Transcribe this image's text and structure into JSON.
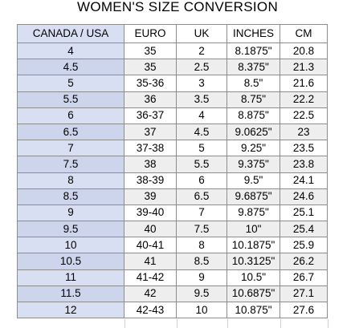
{
  "title": "WOMEN'S SIZE CONVERSION",
  "colors": {
    "header_accent": "#d9dff2",
    "accent_alt": "#cdd5ec",
    "alt_row": "#eeeeee",
    "grid_line": "#8c8c8c"
  },
  "columns": [
    "CANADA / USA",
    "EURO",
    "UK",
    "INCHES",
    "CM"
  ],
  "rows": [
    [
      "4",
      "35",
      "2",
      "8.1875\"",
      "20.8"
    ],
    [
      "4.5",
      "35",
      "2.5",
      "8.375\"",
      "21.3"
    ],
    [
      "5",
      "35-36",
      "3",
      "8.5\"",
      "21.6"
    ],
    [
      "5.5",
      "36",
      "3.5",
      "8.75\"",
      "22.2"
    ],
    [
      "6",
      "36-37",
      "4",
      "8.875\"",
      "22.5"
    ],
    [
      "6.5",
      "37",
      "4.5",
      "9.0625\"",
      "23"
    ],
    [
      "7",
      "37-38",
      "5",
      "9.25\"",
      "23.5"
    ],
    [
      "7.5",
      "38",
      "5.5",
      "9.375\"",
      "23.8"
    ],
    [
      "8",
      "38-39",
      "6",
      "9.5\"",
      "24.1"
    ],
    [
      "8.5",
      "39",
      "6.5",
      "9.6875\"",
      "24.6"
    ],
    [
      "9",
      "39-40",
      "7",
      "9.875\"",
      "25.1"
    ],
    [
      "9.5",
      "40",
      "7.5",
      "10\"",
      "25.4"
    ],
    [
      "10",
      "40-41",
      "8",
      "10.1875\"",
      "25.9"
    ],
    [
      "10.5",
      "41",
      "8.5",
      "10.3125\"",
      "26.2"
    ],
    [
      "11",
      "41-42",
      "9",
      "10.5\"",
      "26.7"
    ],
    [
      "11.5",
      "42",
      "9.5",
      "10.6875\"",
      "27.1"
    ],
    [
      "12",
      "42-43",
      "10",
      "10.875\"",
      "27.6"
    ]
  ]
}
